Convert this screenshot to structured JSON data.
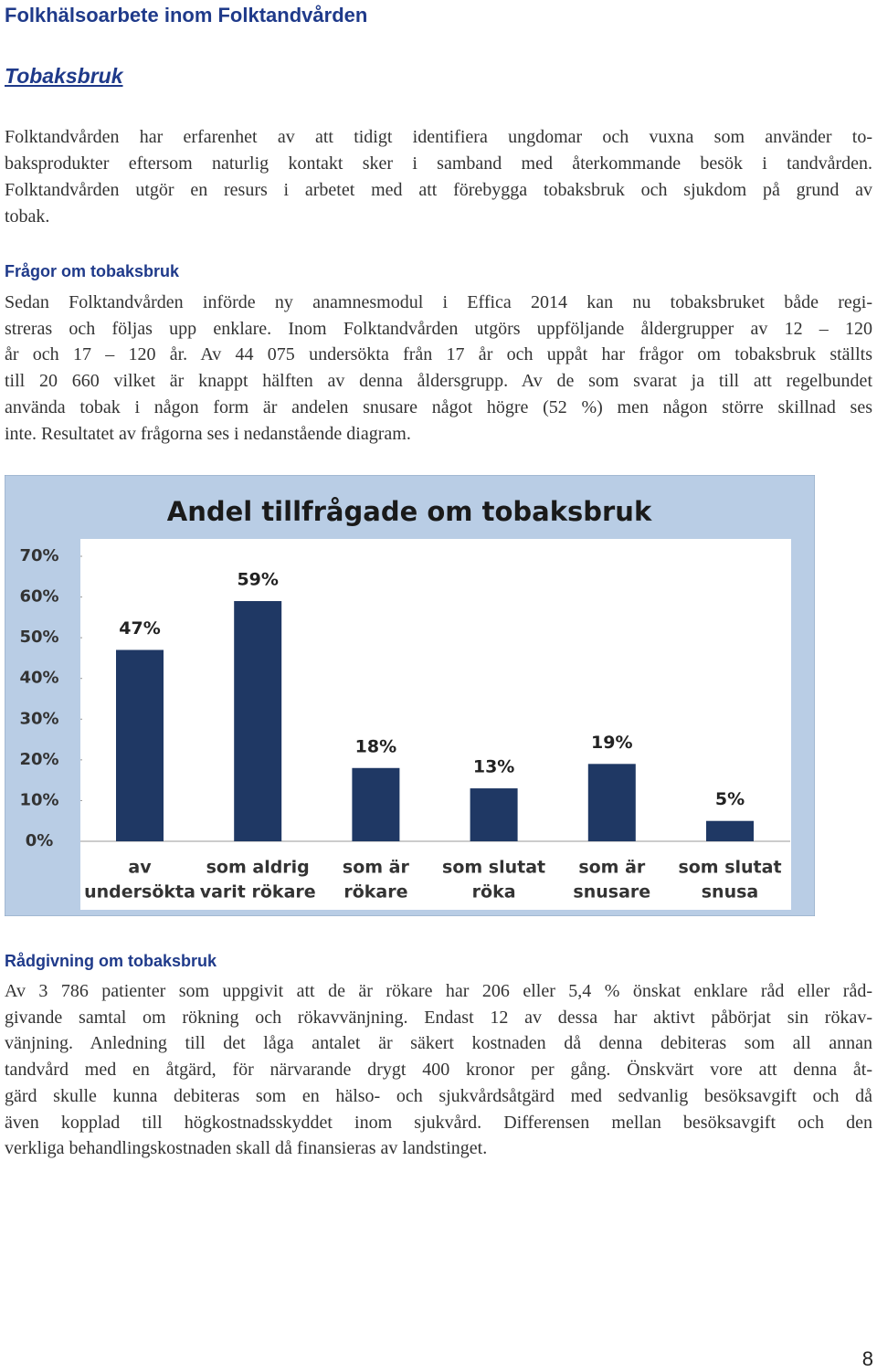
{
  "header": {
    "title": "Folkhälsoarbete inom Folktandvården",
    "subtitle": "Tobaksbruk"
  },
  "intro": {
    "lines": [
      "Folktandvården har erfarenhet av att tidigt identifiera ungdomar och vuxna som använder to-",
      "baksprodukter eftersom naturlig kontakt sker i samband med återkommande besök i tandvården.",
      "Folktandvården utgör en resurs i arbetet med att förebygga tobaksbruk och sjukdom på grund av",
      "tobak."
    ]
  },
  "questions": {
    "heading": "Frågor om tobaksbruk",
    "lines": [
      "Sedan Folktandvården införde ny anamnesmodul i Effica 2014 kan nu tobaksbruket både regi-",
      "streras och följas upp enklare. Inom Folktandvården utgörs uppföljande åldergrupper av 12 – 120",
      "år och 17 – 120 år. Av 44 075 undersökta från 17 år och uppåt har frågor om tobaksbruk ställts",
      "till 20 660 vilket är knappt hälften av denna åldersgrupp. Av de som svarat ja till att regelbundet",
      "använda tobak i någon form är andelen snusare något högre (52 %) men någon större skillnad ses",
      "inte. Resultatet av frågorna ses i nedanstående diagram."
    ]
  },
  "chart_data": {
    "type": "bar",
    "title": "Andel  tillfrågade om tobaksbruk",
    "categories": [
      [
        "av",
        "undersökta"
      ],
      [
        "som aldrig",
        "varit rökare"
      ],
      [
        "som är",
        "rökare"
      ],
      [
        "som slutat",
        "röka"
      ],
      [
        "som är",
        "snusare"
      ],
      [
        "som slutat",
        "snusa"
      ]
    ],
    "values": [
      47,
      59,
      18,
      13,
      19,
      5
    ],
    "value_labels": [
      "47%",
      "59%",
      "18%",
      "13%",
      "19%",
      "5%"
    ],
    "color": "#1f3864",
    "ylim": [
      0,
      70
    ],
    "yticks": [
      {
        "value": 0,
        "label": "0%"
      },
      {
        "value": 10,
        "label": "10%"
      },
      {
        "value": 20,
        "label": "20%"
      },
      {
        "value": 30,
        "label": "30%"
      },
      {
        "value": 40,
        "label": "40%"
      },
      {
        "value": 50,
        "label": "50%"
      },
      {
        "value": 60,
        "label": "60%"
      },
      {
        "value": 70,
        "label": "70%"
      }
    ],
    "grid": false
  },
  "advice": {
    "heading": "Rådgivning om tobaksbruk",
    "lines": [
      "Av 3 786 patienter som uppgivit att de är rökare har 206 eller 5,4 % önskat enklare råd eller råd-",
      "givande samtal om rökning och rökavvänjning. Endast 12 av dessa har aktivt påbörjat sin rökav-",
      "vänjning. Anledning till det låga antalet är säkert kostnaden då denna debiteras som all annan",
      "tandvård med en åtgärd, för närvarande drygt 400 kronor per gång. Önskvärt vore att denna åt-",
      "gärd skulle kunna debiteras som en hälso- och sjukvårdsåtgärd med sedvanlig besöksavgift och då",
      "även kopplad till högkostnadsskyddet inom sjukvård. Differensen mellan besöksavgift och den",
      "verkliga behandlingskostnaden skall då finansieras av landstinget."
    ]
  },
  "page_number": "8"
}
